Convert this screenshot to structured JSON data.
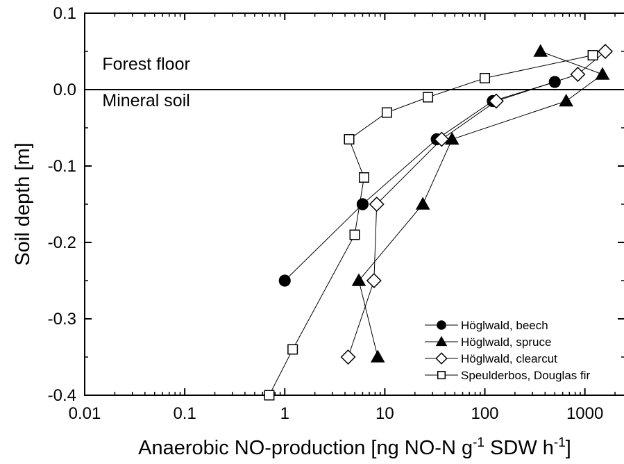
{
  "chart_data": {
    "type": "scatter",
    "xlabel": {
      "main": "Anaerobic NO-production [ng NO-N g",
      "sup1": "-1",
      "mid": " SDW h",
      "sup2": "-1",
      "end": "]"
    },
    "ylabel": "Soil depth [m]",
    "x_scale": "log",
    "xlim": [
      0.01,
      2500
    ],
    "ylim": [
      -0.4,
      0.1
    ],
    "x_ticks": [
      0.01,
      0.1,
      1,
      10,
      100,
      1000
    ],
    "x_tick_labels": [
      "0.01",
      "0.1",
      "1",
      "10",
      "100",
      "1000"
    ],
    "y_ticks": [
      0.1,
      0.0,
      -0.1,
      -0.2,
      -0.3,
      -0.4
    ],
    "y_tick_labels": [
      "0.1",
      "0.0",
      "-0.1",
      "-0.2",
      "-0.3",
      "-0.4"
    ],
    "reference_line_y": 0.0,
    "annotations": [
      {
        "text": "Forest floor",
        "x": 0.015,
        "y": 0.026
      },
      {
        "text": "Mineral soil",
        "x": 0.015,
        "y": -0.022
      }
    ],
    "legend_position": "bottom-right",
    "series": [
      {
        "name": "Höglwald, beech",
        "marker": "filled-circle",
        "points": [
          [
            500,
            0.01
          ],
          [
            120,
            -0.015
          ],
          [
            33,
            -0.065
          ],
          [
            6,
            -0.15
          ],
          [
            1,
            -0.25
          ]
        ]
      },
      {
        "name": "Höglwald, spruce",
        "marker": "filled-triangle",
        "points": [
          [
            360,
            0.05
          ],
          [
            1500,
            0.02
          ],
          [
            650,
            -0.015
          ],
          [
            47,
            -0.065
          ],
          [
            24,
            -0.15
          ],
          [
            5.5,
            -0.25
          ],
          [
            8.5,
            -0.35
          ]
        ]
      },
      {
        "name": "Höglwald, clearcut",
        "marker": "open-diamond",
        "points": [
          [
            1600,
            0.05
          ],
          [
            850,
            0.02
          ],
          [
            130,
            -0.015
          ],
          [
            37,
            -0.065
          ],
          [
            8.3,
            -0.15
          ],
          [
            7.8,
            -0.25
          ],
          [
            4.3,
            -0.35
          ]
        ]
      },
      {
        "name": "Speulderbos, Douglas fir",
        "marker": "open-square",
        "points": [
          [
            1200,
            0.045
          ],
          [
            100,
            0.015
          ],
          [
            27,
            -0.01
          ],
          [
            10.5,
            -0.03
          ],
          [
            4.4,
            -0.065
          ],
          [
            6.2,
            -0.115
          ],
          [
            5,
            -0.19
          ],
          [
            1.2,
            -0.34
          ],
          [
            0.7,
            -0.4
          ]
        ]
      }
    ]
  }
}
